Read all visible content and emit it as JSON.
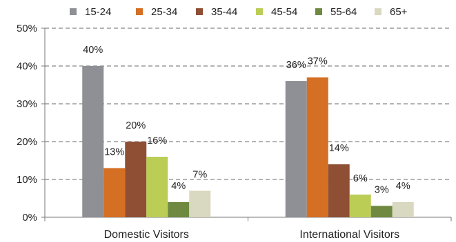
{
  "chart_data": {
    "type": "bar",
    "categories": [
      "Domestic Visitors",
      "International Visitors"
    ],
    "series": [
      {
        "name": "15-24",
        "values": [
          40,
          36
        ],
        "labels": [
          "40%",
          "36%"
        ],
        "color": "#8f9096"
      },
      {
        "name": "25-34",
        "values": [
          13,
          37
        ],
        "labels": [
          "13%",
          "37%"
        ],
        "color": "#d46f24"
      },
      {
        "name": "35-44",
        "values": [
          20,
          14
        ],
        "labels": [
          "20%",
          "14%"
        ],
        "color": "#8e4f35"
      },
      {
        "name": "45-54",
        "values": [
          16,
          6
        ],
        "labels": [
          "16%",
          "6%"
        ],
        "color": "#bccd55"
      },
      {
        "name": "55-64",
        "values": [
          4,
          3
        ],
        "labels": [
          "4%",
          "3%"
        ],
        "color": "#6f8a40"
      },
      {
        "name": "65+",
        "values": [
          7,
          4
        ],
        "labels": [
          "7%",
          "4%"
        ],
        "color": "#d9d8c0"
      }
    ],
    "yticks": [
      "0%",
      "10%",
      "20%",
      "30%",
      "40%",
      "50%"
    ],
    "ylim": [
      0,
      50
    ],
    "grid": true,
    "legend_position": "top"
  }
}
